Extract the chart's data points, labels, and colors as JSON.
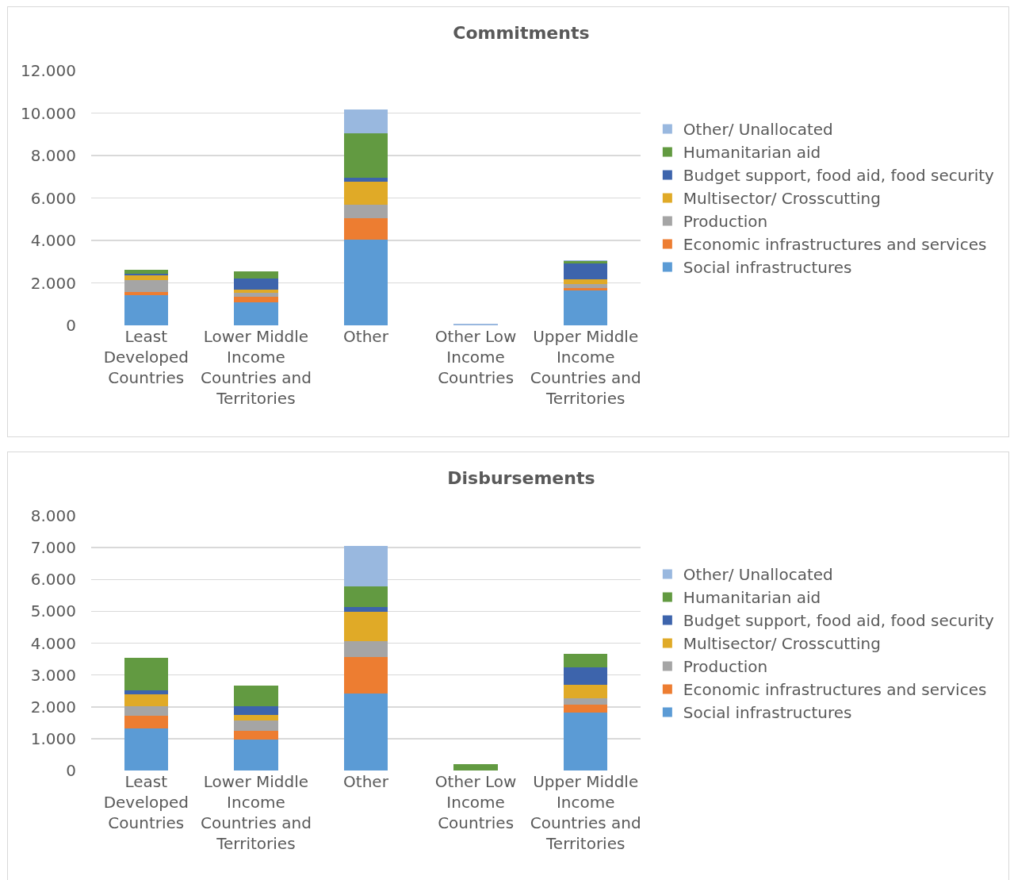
{
  "chart_data": [
    {
      "type": "bar",
      "title": "Commitments",
      "stacked": true,
      "legend": "right",
      "grid": "y",
      "categories": [
        "Least Developed Countries",
        "Lower Middle Income Countries and Territories",
        "Other",
        "Other Low Income Countries",
        "Upper Middle Income Countries and Territories"
      ],
      "ylim": [
        0,
        12000
      ],
      "yticks": [
        {
          "value": 0,
          "label": "0"
        },
        {
          "value": 2000,
          "label": "2.000"
        },
        {
          "value": 4000,
          "label": "4.000"
        },
        {
          "value": 6000,
          "label": "6.000"
        },
        {
          "value": 8000,
          "label": "8.000"
        },
        {
          "value": 10000,
          "label": "10.000"
        },
        {
          "value": 12000,
          "label": "12.000"
        }
      ],
      "series": [
        {
          "name": "Social infrastructures",
          "color": "#5b9bd5",
          "values": [
            1430,
            1070,
            4030,
            null,
            1660
          ]
        },
        {
          "name": "Economic infrastructures and services",
          "color": "#ed7d31",
          "values": [
            150,
            260,
            1010,
            null,
            100
          ]
        },
        {
          "name": "Production",
          "color": "#a5a5a5",
          "values": [
            540,
            210,
            660,
            null,
            180
          ]
        },
        {
          "name": "Multisector/ Crosscutting",
          "color": "#e0aa27",
          "values": [
            220,
            130,
            1070,
            null,
            230
          ]
        },
        {
          "name": "Budget support, food aid, food security",
          "color": "#3d64ac",
          "values": [
            100,
            520,
            200,
            null,
            740
          ]
        },
        {
          "name": "Humanitarian aid",
          "color": "#629a41",
          "values": [
            160,
            360,
            2090,
            null,
            120
          ]
        },
        {
          "name": "Other/ Unallocated",
          "color": "#99b8df",
          "values": [
            null,
            null,
            1090,
            60,
            50
          ]
        }
      ]
    },
    {
      "type": "bar",
      "title": "Disbursements",
      "stacked": true,
      "legend": "right",
      "grid": "y",
      "categories": [
        "Least Developed Countries",
        "Lower Middle Income Countries and Territories",
        "Other",
        "Other Low Income Countries",
        "Upper Middle Income Countries and Territories"
      ],
      "ylim": [
        0,
        8000
      ],
      "yticks": [
        {
          "value": 0,
          "label": "0"
        },
        {
          "value": 1000,
          "label": "1.000"
        },
        {
          "value": 2000,
          "label": "2.000"
        },
        {
          "value": 3000,
          "label": "3.000"
        },
        {
          "value": 4000,
          "label": "4.000"
        },
        {
          "value": 5000,
          "label": "5.000"
        },
        {
          "value": 6000,
          "label": "6.000"
        },
        {
          "value": 7000,
          "label": "7.000"
        },
        {
          "value": 8000,
          "label": "8.000"
        }
      ],
      "series": [
        {
          "name": "Social infrastructures",
          "color": "#5b9bd5",
          "values": [
            1320,
            980,
            2420,
            null,
            1830
          ]
        },
        {
          "name": "Economic infrastructures and services",
          "color": "#ed7d31",
          "values": [
            400,
            270,
            1150,
            null,
            240
          ]
        },
        {
          "name": "Production",
          "color": "#a5a5a5",
          "values": [
            300,
            320,
            500,
            null,
            200
          ]
        },
        {
          "name": "Multisector/ Crosscutting",
          "color": "#e0aa27",
          "values": [
            370,
            180,
            910,
            null,
            410
          ]
        },
        {
          "name": "Budget support, food aid, food security",
          "color": "#3d64ac",
          "values": [
            130,
            260,
            160,
            null,
            550
          ]
        },
        {
          "name": "Humanitarian aid",
          "color": "#629a41",
          "values": [
            1010,
            650,
            650,
            190,
            430
          ]
        },
        {
          "name": "Other/ Unallocated",
          "color": "#99b8df",
          "values": [
            null,
            null,
            1260,
            null,
            null
          ]
        }
      ]
    }
  ]
}
